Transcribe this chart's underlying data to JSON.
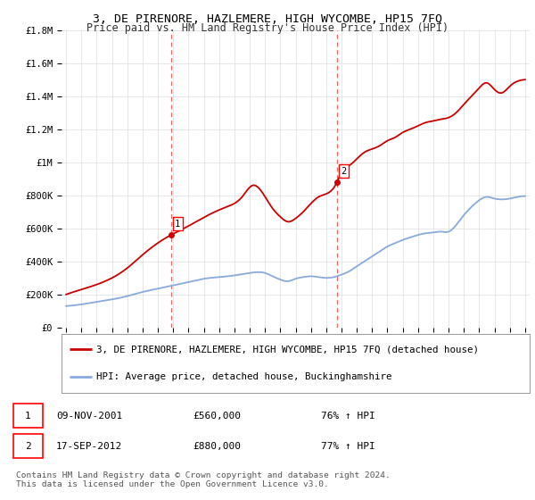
{
  "title": "3, DE PIRENORE, HAZLEMERE, HIGH WYCOMBE, HP15 7FQ",
  "subtitle": "Price paid vs. HM Land Registry's House Price Index (HPI)",
  "ylim": [
    0,
    1800000
  ],
  "yticks": [
    0,
    200000,
    400000,
    600000,
    800000,
    1000000,
    1200000,
    1400000,
    1600000,
    1800000
  ],
  "ytick_labels": [
    "£0",
    "£200K",
    "£400K",
    "£600K",
    "£800K",
    "£1M",
    "£1.2M",
    "£1.4M",
    "£1.6M",
    "£1.8M"
  ],
  "xlim_lo": 1994.7,
  "xlim_hi": 2025.3,
  "xticks": [
    1995,
    1996,
    1997,
    1998,
    1999,
    2000,
    2001,
    2002,
    2003,
    2004,
    2005,
    2006,
    2007,
    2008,
    2009,
    2010,
    2011,
    2012,
    2013,
    2014,
    2015,
    2016,
    2017,
    2018,
    2019,
    2020,
    2021,
    2022,
    2023,
    2024,
    2025
  ],
  "sale1_x": 2001.86,
  "sale1_y": 560000,
  "sale2_x": 2012.71,
  "sale2_y": 880000,
  "red_color": "#cc0000",
  "blue_color": "#88aadd",
  "vline_color": "#ee6666",
  "grid_color": "#dddddd",
  "bg_color": "#ffffff",
  "legend1": "3, DE PIRENORE, HAZLEMERE, HIGH WYCOMBE, HP15 7FQ (detached house)",
  "legend2": "HPI: Average price, detached house, Buckinghamshire",
  "table_rows": [
    {
      "num": "1",
      "date": "09-NOV-2001",
      "price": "£560,000",
      "hpi": "76% ↑ HPI"
    },
    {
      "num": "2",
      "date": "17-SEP-2012",
      "price": "£880,000",
      "hpi": "77% ↑ HPI"
    }
  ],
  "footer": "Contains HM Land Registry data © Crown copyright and database right 2024.\nThis data is licensed under the Open Government Licence v3.0."
}
